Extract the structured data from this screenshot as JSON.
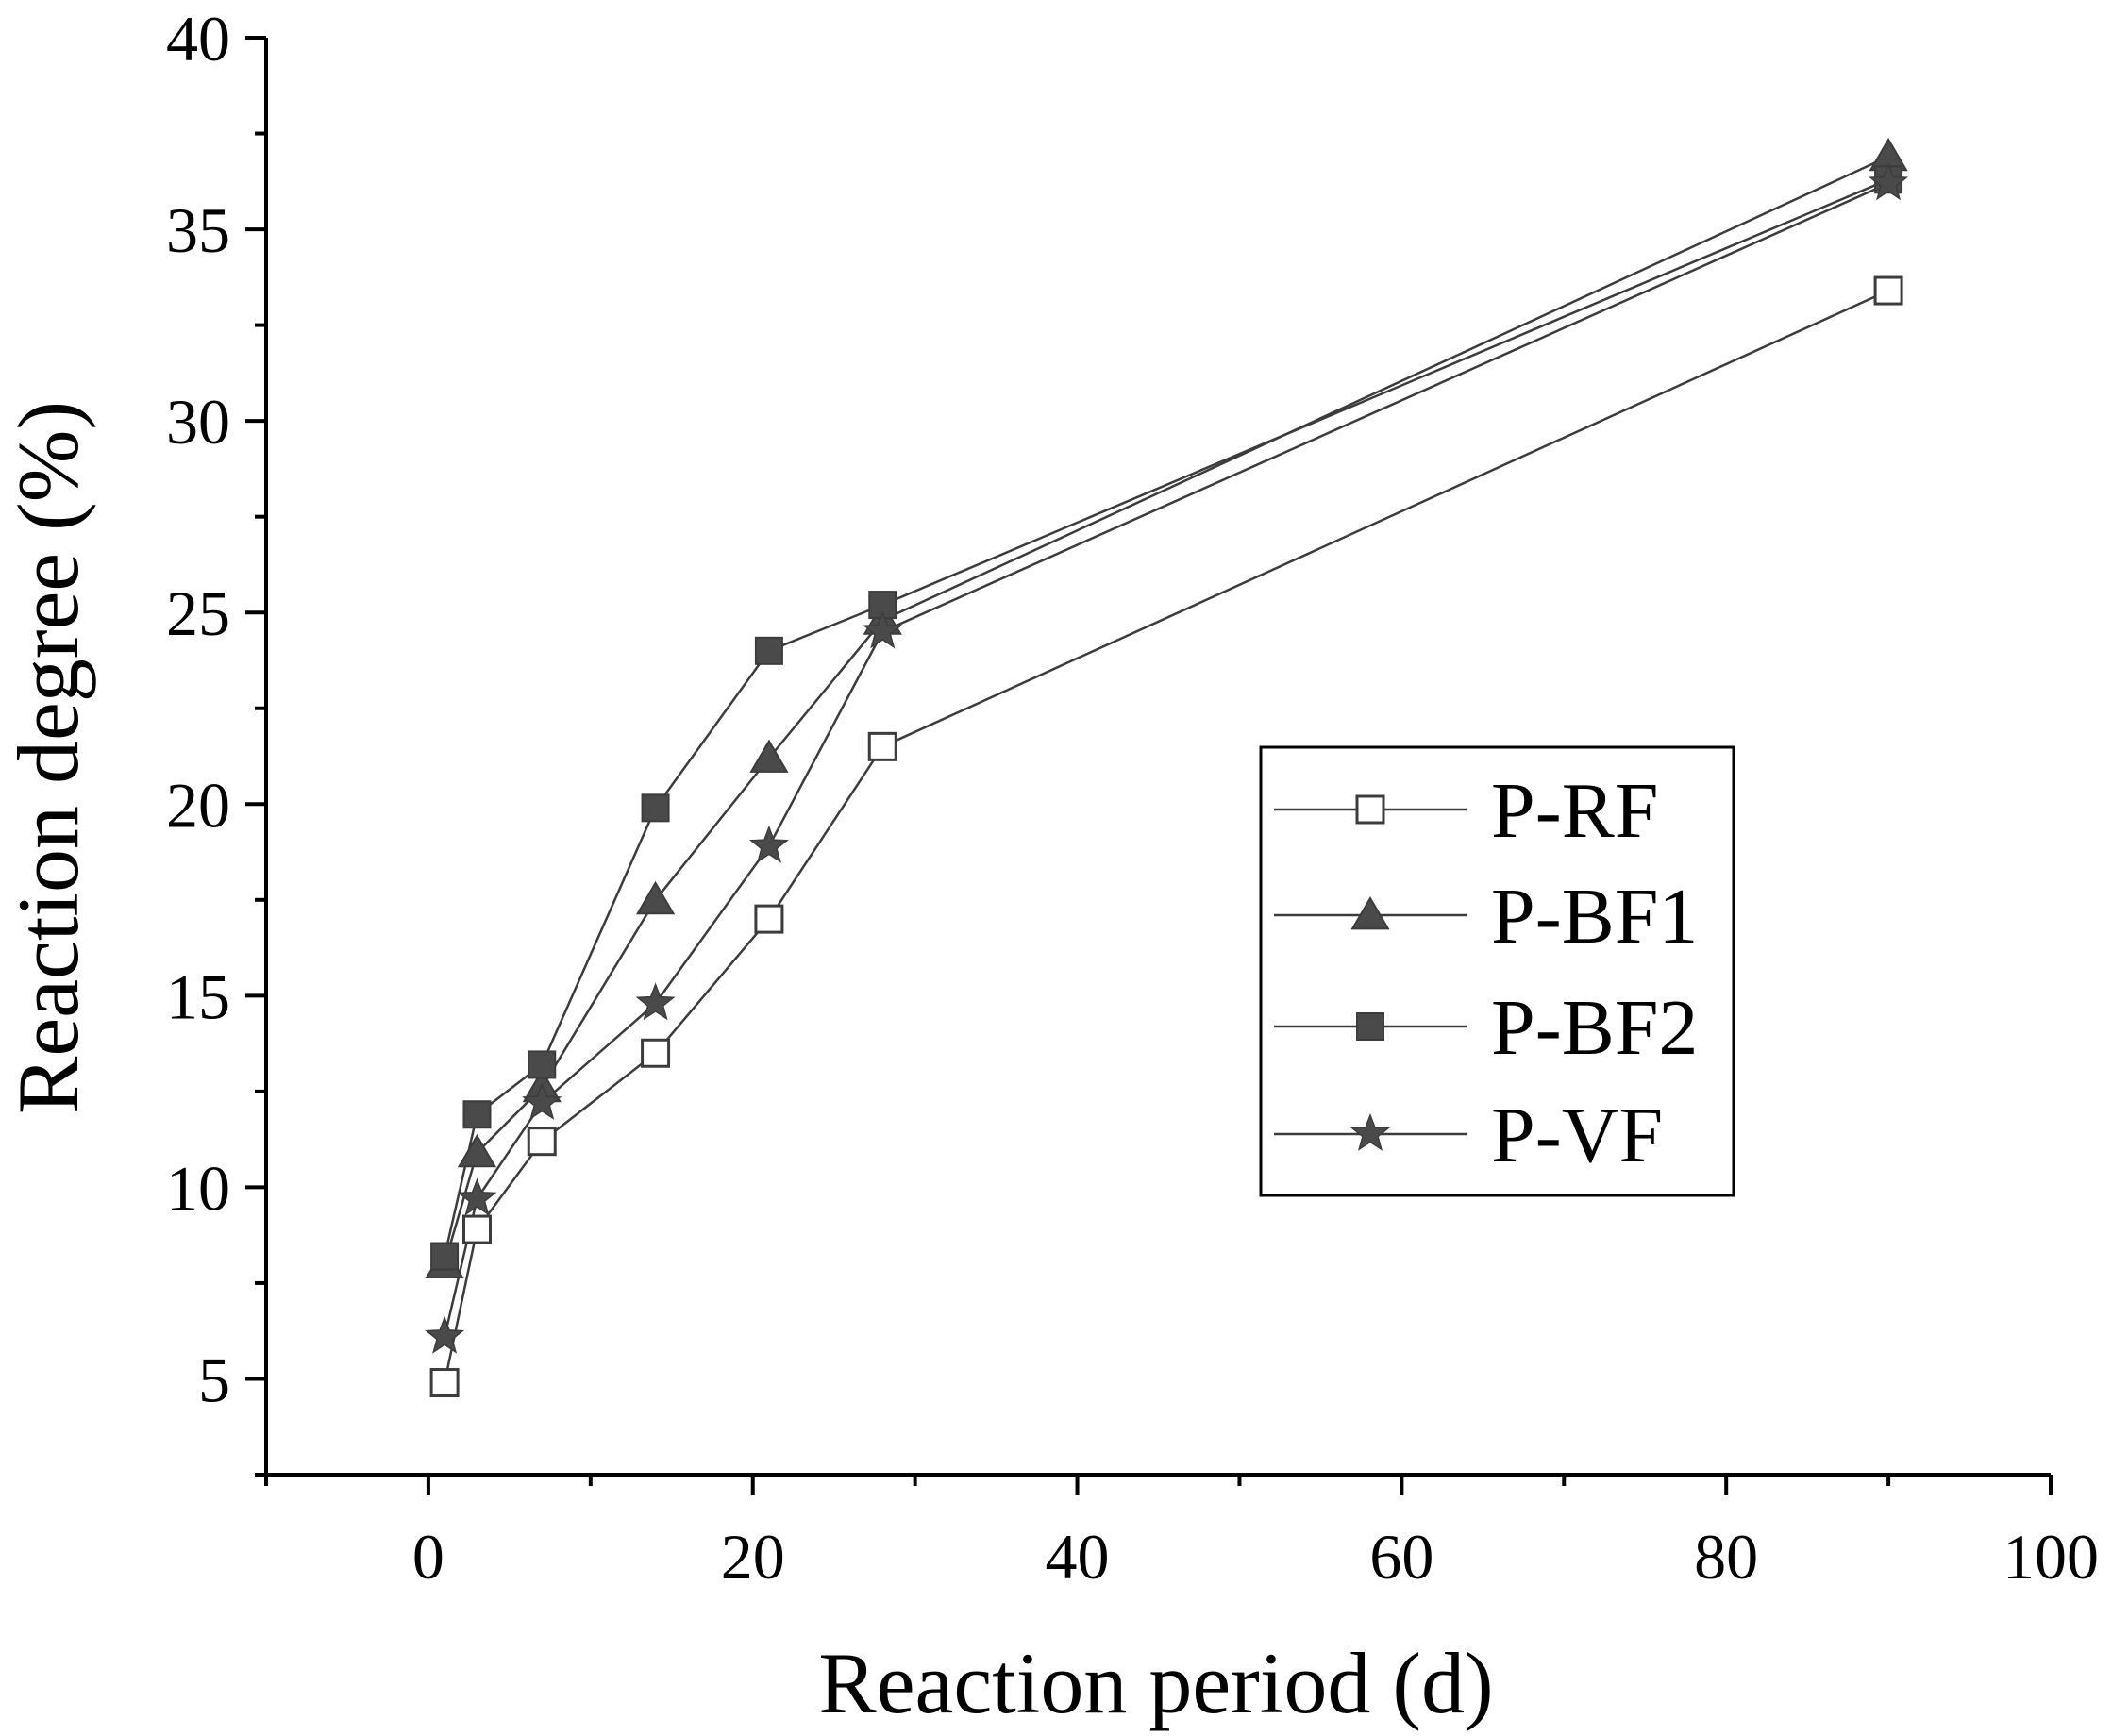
{
  "chart_data": {
    "type": "line",
    "title": "",
    "xlabel": "Reaction period (d)",
    "ylabel": "Reaction degree (%)",
    "xlim": [
      -10,
      100
    ],
    "ylim": [
      2.5,
      40
    ],
    "x_ticks": [
      0,
      20,
      40,
      60,
      80,
      100
    ],
    "x_tick_labels": [
      "0",
      "20",
      "40",
      "60",
      "80",
      "100"
    ],
    "y_ticks": [
      5,
      10,
      15,
      20,
      25,
      30,
      35,
      40
    ],
    "y_tick_labels": [
      "5",
      "10",
      "15",
      "20",
      "25",
      "30",
      "35",
      "40"
    ],
    "grid": false,
    "legend_position": "center-right",
    "series": [
      {
        "name": "P-RF",
        "marker": "square-open",
        "x": [
          1,
          3,
          7,
          14,
          21,
          28,
          90
        ],
        "values": [
          4.9,
          8.9,
          11.2,
          13.5,
          17.0,
          21.5,
          33.4
        ]
      },
      {
        "name": "P-BF1",
        "marker": "triangle",
        "x": [
          1,
          3,
          7,
          14,
          21,
          28,
          90
        ],
        "values": [
          8.0,
          10.9,
          12.6,
          17.5,
          21.2,
          24.8,
          36.9
        ]
      },
      {
        "name": "P-BF2",
        "marker": "square-filled",
        "x": [
          1,
          3,
          7,
          14,
          21,
          28,
          90
        ],
        "values": [
          8.2,
          11.9,
          13.2,
          19.9,
          24.0,
          25.2,
          36.3
        ]
      },
      {
        "name": "P-VF",
        "marker": "star",
        "x": [
          1,
          3,
          7,
          14,
          21,
          28,
          90
        ],
        "values": [
          6.1,
          9.7,
          12.2,
          14.8,
          18.9,
          24.5,
          36.2
        ]
      }
    ]
  },
  "colors": {
    "line": "#3c3c3c",
    "marker_fill": "#4a4a4a",
    "axis": "#000000",
    "background": "#ffffff"
  }
}
